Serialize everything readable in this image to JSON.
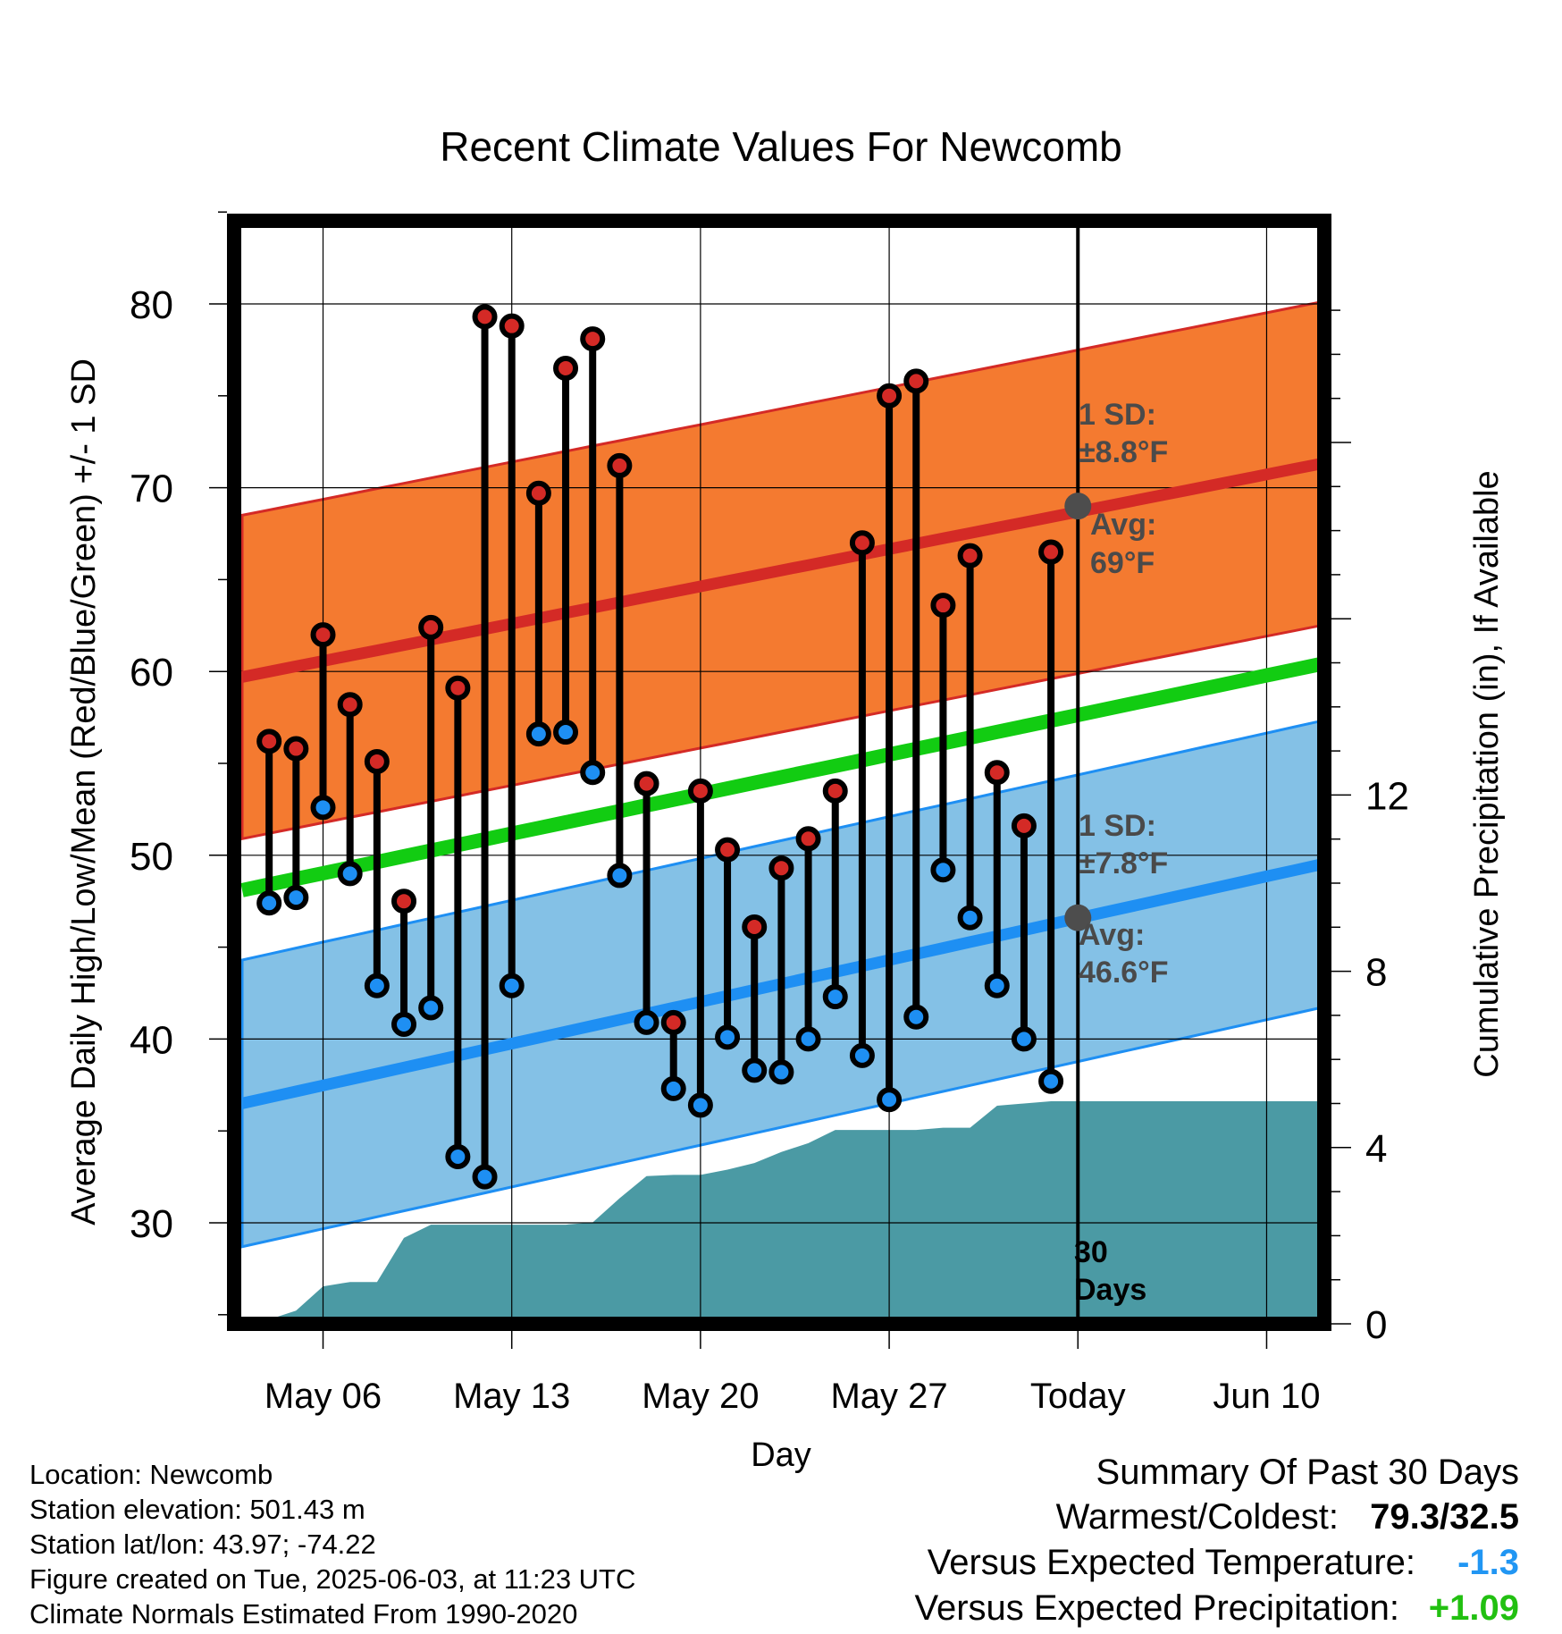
{
  "title": "Recent Climate Values For Newcomb",
  "chart_data": {
    "type": "line",
    "title": "Recent Climate Values For Newcomb",
    "xlabel": "Day",
    "ylabel_left": "Average Daily High/Low/Mean (Red/Blue/Green) +/- 1 SD",
    "ylabel_right": "Cumulative Precipitation (in), If Available",
    "ylim": [
      25,
      85
    ],
    "ylim_right": [
      0,
      23.2
    ],
    "left_ticks": [
      "30",
      "40",
      "50",
      "60",
      "70",
      "80"
    ],
    "right_ticks": [
      "0",
      "4",
      "8",
      "12"
    ],
    "x_ticks": [
      "May 06",
      "May 13",
      "May 20",
      "May 27",
      "Today",
      "Jun 10"
    ],
    "x_dates": [
      "May 03",
      "May 04",
      "May 05",
      "May 06",
      "May 07",
      "May 08",
      "May 09",
      "May 10",
      "May 11",
      "May 12",
      "May 13",
      "May 14",
      "May 15",
      "May 16",
      "May 17",
      "May 18",
      "May 19",
      "May 20",
      "May 21",
      "May 22",
      "May 23",
      "May 24",
      "May 25",
      "May 26",
      "May 27",
      "May 28",
      "May 29",
      "May 30",
      "May 31",
      "Jun 01",
      "Jun 02",
      "Jun 03",
      "Jun 04",
      "Jun 05",
      "Jun 06",
      "Jun 07",
      "Jun 08",
      "Jun 09",
      "Jun 10",
      "Jun 11",
      "Jun 12"
    ],
    "daily": {
      "dates": [
        "May 04",
        "May 05",
        "May 06",
        "May 07",
        "May 08",
        "May 09",
        "May 10",
        "May 11",
        "May 12",
        "May 13",
        "May 14",
        "May 15",
        "May 16",
        "May 17",
        "May 18",
        "May 19",
        "May 20",
        "May 21",
        "May 22",
        "May 23",
        "May 24",
        "May 25",
        "May 26",
        "May 27",
        "May 28",
        "May 29",
        "May 30",
        "May 31",
        "Jun 01",
        "Jun 02"
      ],
      "high": [
        56.2,
        55.8,
        62.0,
        58.2,
        55.1,
        47.5,
        62.4,
        59.1,
        79.3,
        78.8,
        69.7,
        76.5,
        78.1,
        71.2,
        53.9,
        40.9,
        53.5,
        50.3,
        46.1,
        49.3,
        50.9,
        53.5,
        67.0,
        75.0,
        75.8,
        63.6,
        66.3,
        54.5,
        51.6,
        66.5
      ],
      "low": [
        47.4,
        47.7,
        52.6,
        49.0,
        42.9,
        40.8,
        41.7,
        33.6,
        32.5,
        42.9,
        56.6,
        56.7,
        54.5,
        48.9,
        40.9,
        37.3,
        36.4,
        40.1,
        38.3,
        38.2,
        40.0,
        42.3,
        39.1,
        36.7,
        41.2,
        49.2,
        46.6,
        42.9,
        40.0,
        37.7
      ]
    },
    "normals": {
      "high_mean": [
        59.7,
        71.3
      ],
      "high_sd": 8.8,
      "low_mean": [
        36.5,
        49.5
      ],
      "low_sd": 7.8,
      "mean": [
        48.1,
        60.4
      ]
    },
    "precip_cumulative": {
      "dates": [
        "May 03",
        "May 04",
        "May 05",
        "May 06",
        "May 07",
        "May 08",
        "May 09",
        "May 10",
        "May 11",
        "May 12",
        "May 13",
        "May 14",
        "May 15",
        "May 16",
        "May 17",
        "May 18",
        "May 19",
        "May 20",
        "May 21",
        "May 22",
        "May 23",
        "May 24",
        "May 25",
        "May 26",
        "May 27",
        "May 28",
        "May 29",
        "May 30",
        "May 31",
        "Jun 01",
        "Jun 02",
        "Jun 03"
      ],
      "values": [
        0.0,
        0.1,
        0.3,
        0.85,
        0.95,
        0.95,
        1.95,
        2.25,
        2.25,
        2.25,
        2.25,
        2.25,
        2.25,
        2.3,
        2.85,
        3.35,
        3.38,
        3.38,
        3.5,
        3.65,
        3.9,
        4.1,
        4.4,
        4.4,
        4.4,
        4.4,
        4.45,
        4.45,
        4.95,
        5.0,
        5.05,
        5.05
      ]
    },
    "annotations": {
      "high_sd_label": "1 SD:",
      "high_sd_value": "±8.8°F",
      "high_avg_label": "Avg:",
      "high_avg_value": "69°F",
      "high_avg": 69,
      "low_sd_label": "1 SD:",
      "low_sd_value": "±7.8°F",
      "low_avg_label": "Avg:",
      "low_avg_value": "46.6°F",
      "low_avg": 46.6,
      "days_label": "30 Days",
      "today": "Jun 03"
    },
    "colors": {
      "high_band": "#f47a30",
      "high_line": "#d42a26",
      "low_band": "#84c1e6",
      "low_line": "#1e8ff3",
      "mean_line": "#12cc12",
      "precip": "#4b9aa4",
      "high_dot": "#d42a26",
      "low_dot": "#1e8ff3"
    },
    "grid": true
  },
  "info": {
    "location": "Location: Newcomb",
    "elevation": "Station elevation: 501.43 m",
    "latlon": "Station lat/lon: 43.97; -74.22",
    "created": "Figure created on Tue, 2025-06-03, at 11:23 UTC",
    "normals": "Climate Normals Estimated From 1990-2020"
  },
  "summary": {
    "title": "Summary Of Past 30 Days",
    "warmest_coldest_label": "Warmest/Coldest:",
    "warmest_coldest_value": "79.3/32.5",
    "temp_label": "Versus Expected Temperature:",
    "temp_value": "-1.3",
    "precip_label": "Versus Expected Precipitation:",
    "precip_value": "+1.09"
  }
}
